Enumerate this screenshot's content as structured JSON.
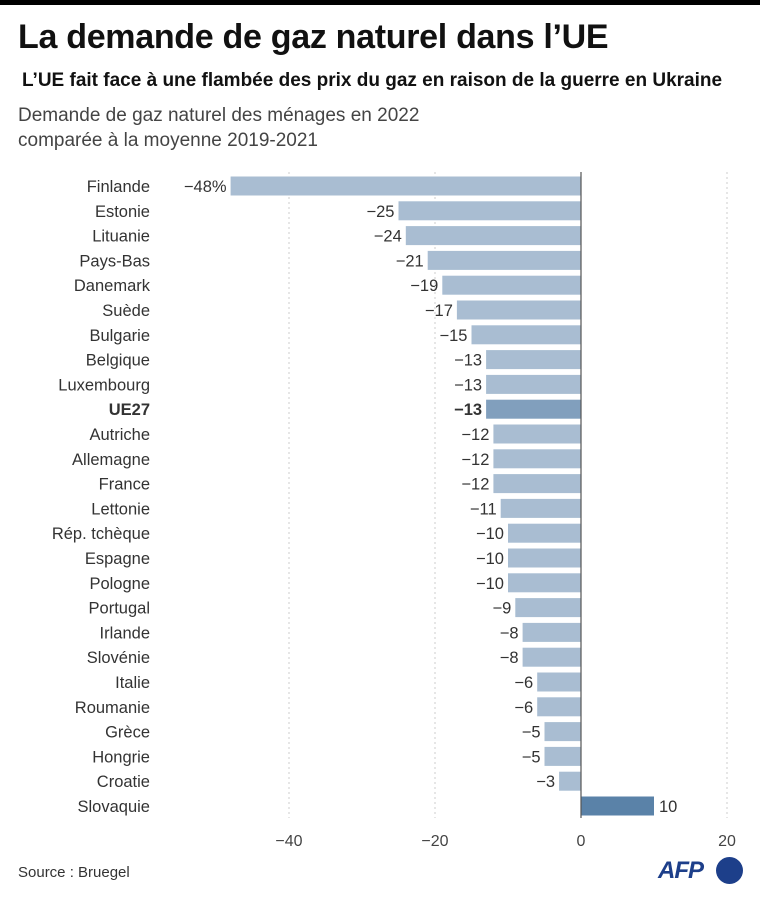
{
  "title": "La demande de gaz naturel dans l’UE",
  "subtitle": "L’UE fait face à une flambée des prix du gaz en raison de la guerre en Ukraine",
  "description_line1": "Demande de gaz naturel des ménages en 2022",
  "description_line2": "comparée à la moyenne 2019-2021",
  "source": "Source : Bruegel",
  "logo_text": "AFP",
  "colors": {
    "bar_negative": "#a9bdd2",
    "bar_highlight": "#819fbd",
    "bar_positive": "#5a82a8",
    "grid": "#cccccc",
    "axis": "#555555"
  },
  "chart_data": {
    "type": "bar",
    "orientation": "horizontal",
    "categories": [
      "Finlande",
      "Estonie",
      "Lituanie",
      "Pays-Bas",
      "Danemark",
      "Suède",
      "Bulgarie",
      "Belgique",
      "Luxembourg",
      "UE27",
      "Autriche",
      "Allemagne",
      "France",
      "Lettonie",
      "Rép. tchèque",
      "Espagne",
      "Pologne",
      "Portugal",
      "Irlande",
      "Slovénie",
      "Italie",
      "Roumanie",
      "Grèce",
      "Hongrie",
      "Croatie",
      "Slovaquie"
    ],
    "values": [
      -48,
      -25,
      -24,
      -21,
      -19,
      -17,
      -15,
      -13,
      -13,
      -13,
      -12,
      -12,
      -12,
      -11,
      -10,
      -10,
      -10,
      -9,
      -8,
      -8,
      -6,
      -6,
      -5,
      -5,
      -3,
      10
    ],
    "value_labels": [
      "−48%",
      "−25",
      "−24",
      "−21",
      "−19",
      "−17",
      "−15",
      "−13",
      "−13",
      "−13",
      "−12",
      "−12",
      "−12",
      "−11",
      "−10",
      "−10",
      "−10",
      "−9",
      "−8",
      "−8",
      "−6",
      "−6",
      "−5",
      "−5",
      "−3",
      "10"
    ],
    "highlight": "UE27",
    "xlim": [
      -50,
      20
    ],
    "xticks": [
      -40,
      -20,
      0,
      20
    ],
    "xtick_labels": [
      "−40",
      "−20",
      "0",
      "20"
    ],
    "title": "La demande de gaz naturel dans l’UE",
    "xlabel": "",
    "ylabel": "",
    "grid": true
  }
}
